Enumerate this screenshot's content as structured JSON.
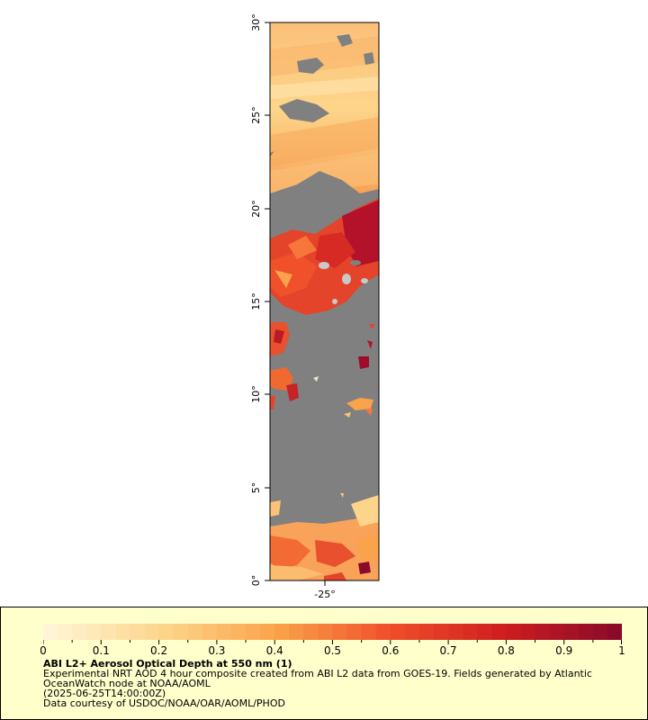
{
  "map": {
    "latitude_labels": [
      "0°",
      "5°",
      "10°",
      "15°",
      "20°",
      "25°",
      "30°"
    ],
    "longitude_labels": [
      "-25°"
    ],
    "no_data_color": "#808080"
  },
  "colorbar": {
    "tick_labels": [
      "0",
      "0.1",
      "0.2",
      "0.3",
      "0.4",
      "0.5",
      "0.6",
      "0.7",
      "0.8",
      "0.9",
      "1"
    ],
    "colors": [
      "#fff5d6",
      "#fdd58a",
      "#fba34a",
      "#f0502a",
      "#d01e20",
      "#8b0a2a"
    ]
  },
  "legend": {
    "title": "ABI L2+ Aerosol Optical Depth at 550 nm (1)",
    "line1": "Experimental NRT AOD 4 hour composite created from ABI L2 data from GOES-19. Fields generated by Atlantic",
    "line2": "OceanWatch node at NOAA/AOML",
    "line3": "(2025-06-25T14:00:00Z)",
    "line4": "Data courtesy of USDOC/NOAA/OAR/AOML/PHOD"
  }
}
